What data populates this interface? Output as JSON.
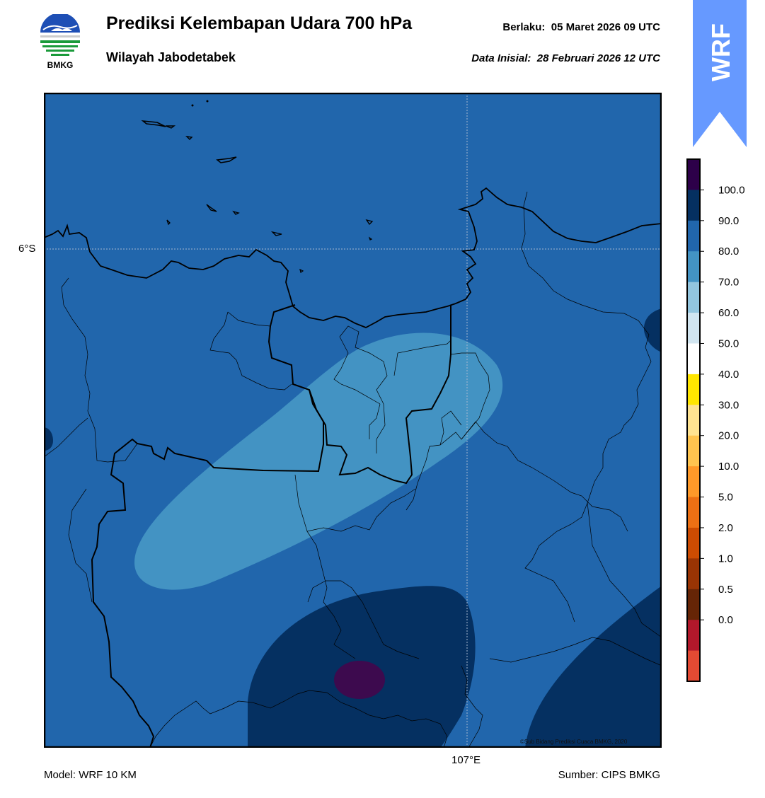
{
  "header": {
    "title": "Prediksi Kelembapan Udara 700 hPa",
    "subtitle": "Wilayah Jabodetabek",
    "valid_label": "Berlaku:",
    "valid_time": "05 Maret 2026 09 UTC",
    "init_label": "Data Inisial:",
    "init_time": "28 Februari 2026 12 UTC"
  },
  "logo": {
    "text": "BMKG",
    "icon": "bmkg-logo"
  },
  "badge": {
    "text": "WRF",
    "color": "#6699ff"
  },
  "map": {
    "lat_label": "6°S",
    "lon_label": "107°E",
    "copyright": "©Sub Bidang Prediksi Cuaca BMKG, 2020",
    "colors": {
      "level_80_90": "#2166ac",
      "level_70_80": "#4393c3",
      "level_90_100": "#053061",
      "level_100": "#3d0a4e"
    }
  },
  "colorbar": {
    "labels": [
      "100.0",
      "90.0",
      "80.0",
      "70.0",
      "60.0",
      "50.0",
      "40.0",
      "30.0",
      "20.0",
      "10.0",
      "5.0",
      "2.0",
      "1.0",
      "0.5",
      "0.0"
    ],
    "colors": [
      "#2d0049",
      "#053061",
      "#2166ac",
      "#4393c3",
      "#92c5de",
      "#d1e5f0",
      "#ffffff",
      "#ffe600",
      "#fee391",
      "#fec44f",
      "#fe9929",
      "#ec7014",
      "#cc4c02",
      "#993404",
      "#662506",
      "#b2182b",
      "#e34a33"
    ]
  },
  "footer": {
    "model": "Model: WRF 10 KM",
    "source": "Sumber: CIPS BMKG"
  }
}
